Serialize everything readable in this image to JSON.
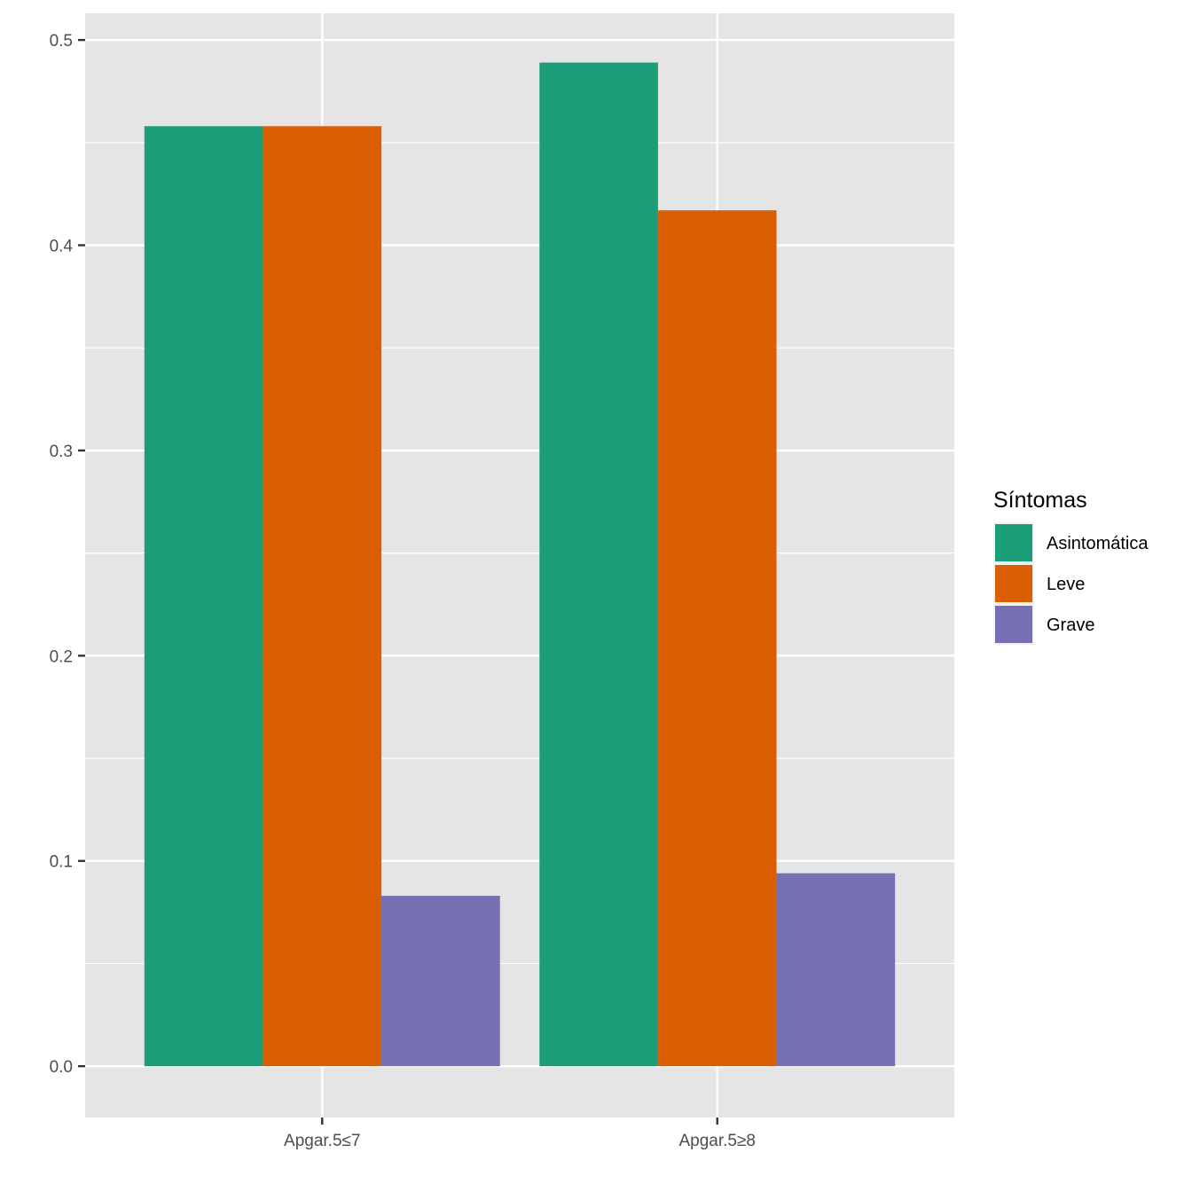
{
  "chart_data": {
    "type": "bar",
    "categories": [
      "Apgar.5≤7",
      "Apgar.5≥8"
    ],
    "series": [
      {
        "name": "Asintomática",
        "color": "#1B9E77",
        "values": [
          0.458,
          0.489
        ]
      },
      {
        "name": "Leve",
        "color": "#D95F02",
        "values": [
          0.458,
          0.417
        ]
      },
      {
        "name": "Grave",
        "color": "#7570B3",
        "values": [
          0.083,
          0.094
        ]
      }
    ],
    "ylim": [
      -0.025,
      0.513
    ],
    "yticks": [
      0.0,
      0.1,
      0.2,
      0.3,
      0.4,
      0.5
    ],
    "ytick_labels": [
      "0.0",
      "0.1",
      "0.2",
      "0.3",
      "0.4",
      "0.5"
    ],
    "grid": true,
    "legend": {
      "title": "Síntomas",
      "placement": "right"
    },
    "colors": {
      "panel": "#E5E5E5",
      "grid": "#FFFFFF",
      "ticks": "#333333",
      "tick_text": "#4D4D4D"
    }
  }
}
